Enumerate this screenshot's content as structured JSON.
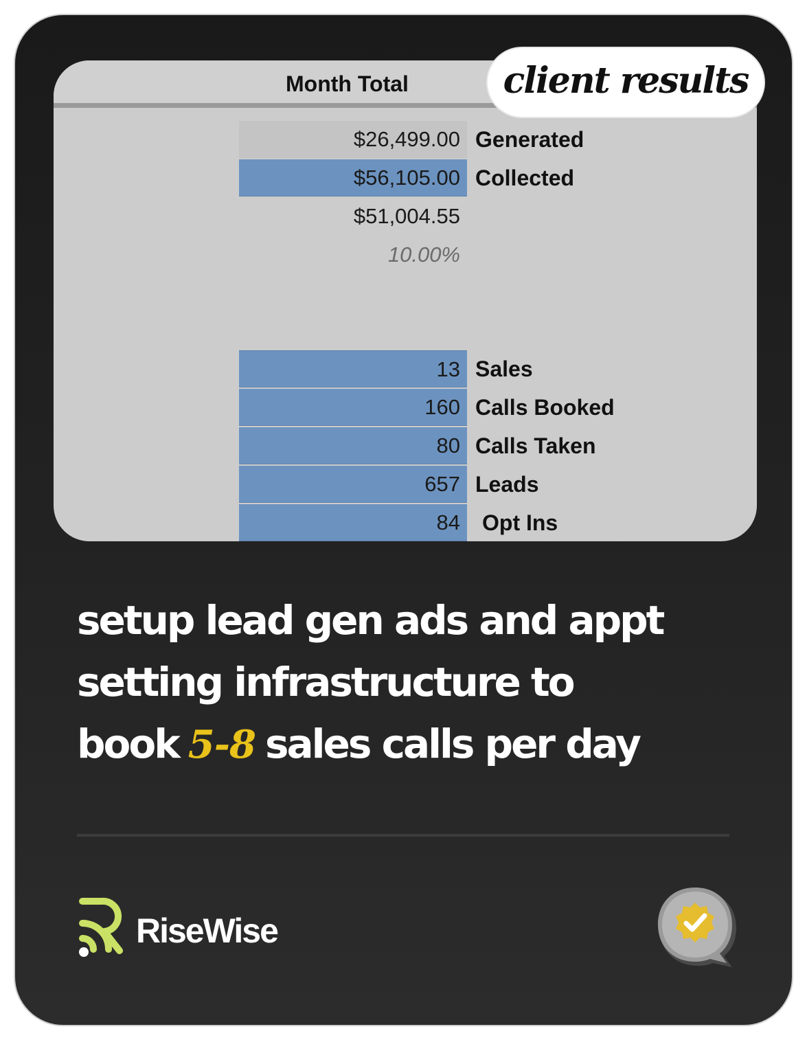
{
  "badge": {
    "label": "client results"
  },
  "sheet": {
    "header": "Month Total",
    "money_rows": [
      {
        "value": "$26,499.00",
        "label": "Generated"
      },
      {
        "value": "$56,105.00",
        "label": "Collected"
      },
      {
        "value": "$51,004.55",
        "label": ""
      },
      {
        "value": "10.00%",
        "label": ""
      }
    ],
    "stat_rows": [
      {
        "value": "13",
        "label": "Sales"
      },
      {
        "value": "160",
        "label": "Calls Booked"
      },
      {
        "value": "80",
        "label": "Calls Taken"
      },
      {
        "value": "657",
        "label": "Leads"
      },
      {
        "value": "84",
        "label": "Opt Ins"
      }
    ]
  },
  "headline": {
    "line1": "setup lead gen ads and appt",
    "line2": "setting infrastructure to",
    "line3_pre": "book",
    "line3_highlight": "5-8",
    "line3_post": "sales calls per day"
  },
  "brand": {
    "name": "RiseWise",
    "logo_icon": "risewise-signal-icon",
    "accent": "#c9e265"
  },
  "verified": {
    "icon": "verified-badge-icon"
  },
  "colors": {
    "card_bg": "#1f1f1f",
    "sheet_bg": "#cccccc",
    "cell_blue": "#6c93c0",
    "highlight": "#e9c21a"
  }
}
